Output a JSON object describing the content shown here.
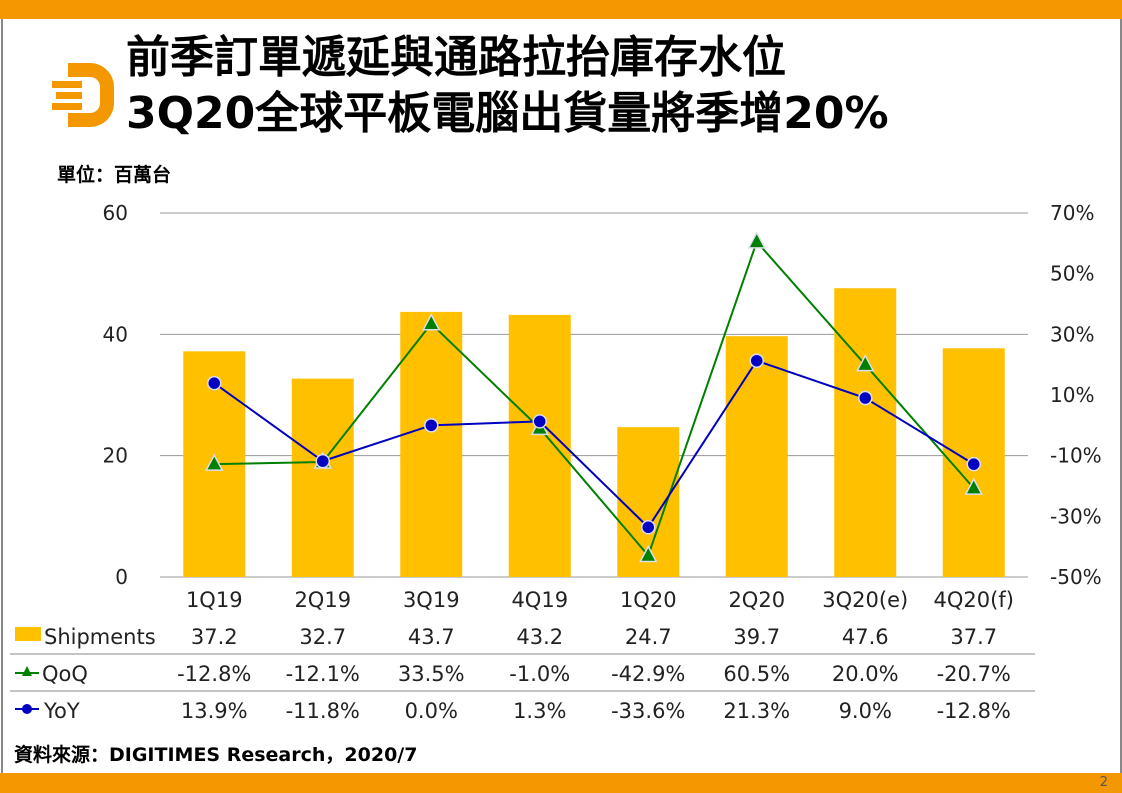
{
  "title_line1": "前季訂單遞延與通路拉抬庫存水位",
  "title_line2": "3Q20全球平板電腦出貨量將季增20%",
  "unit": "單位：百萬台",
  "source": "資料來源：DIGITIMES Research，2020/7",
  "page_number": "2",
  "colors": {
    "brand": "#F39800",
    "shipments": "#FFC000",
    "qoq": "#008000",
    "yoy": "#0000C0"
  },
  "chart_data": {
    "type": "bar+line",
    "categories": [
      "1Q19",
      "2Q19",
      "3Q19",
      "4Q19",
      "1Q20",
      "2Q20",
      "3Q20(e)",
      "4Q20(f)"
    ],
    "left_axis": {
      "ylim": [
        0,
        60
      ],
      "ticks": [
        "0",
        "20",
        "40",
        "60"
      ]
    },
    "right_axis": {
      "ylim": [
        -50,
        70
      ],
      "ticks": [
        "-50%",
        "-30%",
        "-10%",
        "10%",
        "30%",
        "50%",
        "70%"
      ]
    },
    "grid": true,
    "series": [
      {
        "name": "Shipments",
        "type": "bar",
        "axis": "left",
        "values": [
          37.2,
          32.7,
          43.7,
          43.2,
          24.7,
          39.7,
          47.6,
          37.7
        ],
        "labels": [
          "37.2",
          "32.7",
          "43.7",
          "43.2",
          "24.7",
          "39.7",
          "47.6",
          "37.7"
        ]
      },
      {
        "name": "QoQ",
        "type": "line",
        "marker": "triangle",
        "axis": "right",
        "values": [
          -12.8,
          -12.1,
          33.5,
          -1.0,
          -42.9,
          60.5,
          20.0,
          -20.7
        ],
        "labels": [
          "-12.8%",
          "-12.1%",
          "33.5%",
          "-1.0%",
          "-42.9%",
          "60.5%",
          "20.0%",
          "-20.7%"
        ]
      },
      {
        "name": "YoY",
        "type": "line",
        "marker": "circle",
        "axis": "right",
        "values": [
          13.9,
          -11.8,
          0.0,
          1.3,
          -33.6,
          21.3,
          9.0,
          -12.8
        ],
        "labels": [
          "13.9%",
          "-11.8%",
          "0.0%",
          "1.3%",
          "-33.6%",
          "21.3%",
          "9.0%",
          "-12.8%"
        ]
      }
    ],
    "legend": "data-table"
  }
}
